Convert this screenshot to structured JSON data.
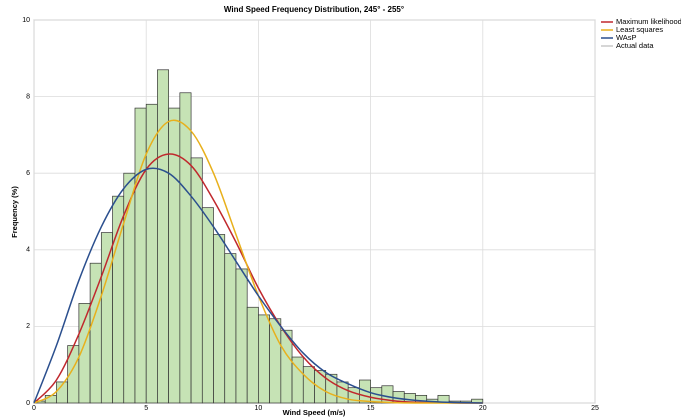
{
  "chart_data": {
    "type": "histogram",
    "title": "Wind Speed Frequency Distribution, 245° - 255°",
    "xlabel": "Wind Speed (m/s)",
    "ylabel": "Frequency (%)",
    "xlim": [
      0,
      25
    ],
    "ylim": [
      0,
      10
    ],
    "xticks": [
      0,
      5,
      10,
      15,
      20,
      25
    ],
    "yticks": [
      0,
      2,
      4,
      6,
      8,
      10
    ],
    "grid": true,
    "legend": "right",
    "histogram_name": "Actual data",
    "histogram_color": "#c6e3b5",
    "histogram_legend_color": "#c8c8c8",
    "bins": [
      0,
      0.5,
      1,
      1.5,
      2,
      2.5,
      3,
      3.5,
      4,
      4.5,
      5,
      5.5,
      6,
      6.5,
      7,
      7.5,
      8,
      8.5,
      9,
      9.5,
      10,
      10.5,
      11,
      11.5,
      12,
      12.5,
      13,
      13.5,
      14,
      14.5,
      15,
      15.5,
      16,
      16.5,
      17,
      17.5,
      18,
      18.5,
      19,
      19.5,
      20
    ],
    "values": [
      0.05,
      0.2,
      0.55,
      1.5,
      2.6,
      3.65,
      4.45,
      5.4,
      6.0,
      7.7,
      7.8,
      8.7,
      7.7,
      8.1,
      6.4,
      5.1,
      4.4,
      3.9,
      3.5,
      2.5,
      2.3,
      2.2,
      1.9,
      1.2,
      0.95,
      0.85,
      0.75,
      0.55,
      0.4,
      0.6,
      0.4,
      0.45,
      0.3,
      0.25,
      0.2,
      0.1,
      0.2,
      0.05,
      0.05,
      0.1
    ],
    "curve_x": [
      0,
      1,
      2,
      3,
      4,
      5,
      6,
      7,
      8,
      9,
      10,
      11,
      12,
      13,
      14,
      15,
      16,
      17,
      18,
      19,
      20
    ],
    "series": [
      {
        "name": "Maximum likelihood",
        "color": "#c0282d",
        "values": [
          0,
          0.6,
          1.8,
          3.3,
          4.9,
          6.1,
          6.5,
          6.2,
          5.3,
          4.2,
          3.0,
          2.0,
          1.2,
          0.65,
          0.32,
          0.15,
          0.06,
          0.02,
          0.01,
          0,
          0
        ]
      },
      {
        "name": "Least squares",
        "color": "#e8b01c",
        "values": [
          0,
          0.3,
          1.2,
          2.8,
          4.7,
          6.5,
          7.35,
          7.1,
          6.0,
          4.4,
          2.8,
          1.5,
          0.75,
          0.3,
          0.1,
          0.04,
          0.01,
          0,
          0,
          0,
          0
        ]
      },
      {
        "name": "WAsP",
        "color": "#2b4f8e",
        "values": [
          0,
          1.5,
          3.2,
          4.6,
          5.6,
          6.1,
          6.0,
          5.4,
          4.6,
          3.7,
          2.8,
          2.0,
          1.3,
          0.8,
          0.5,
          0.27,
          0.14,
          0.07,
          0.03,
          0.01,
          0
        ]
      }
    ]
  }
}
